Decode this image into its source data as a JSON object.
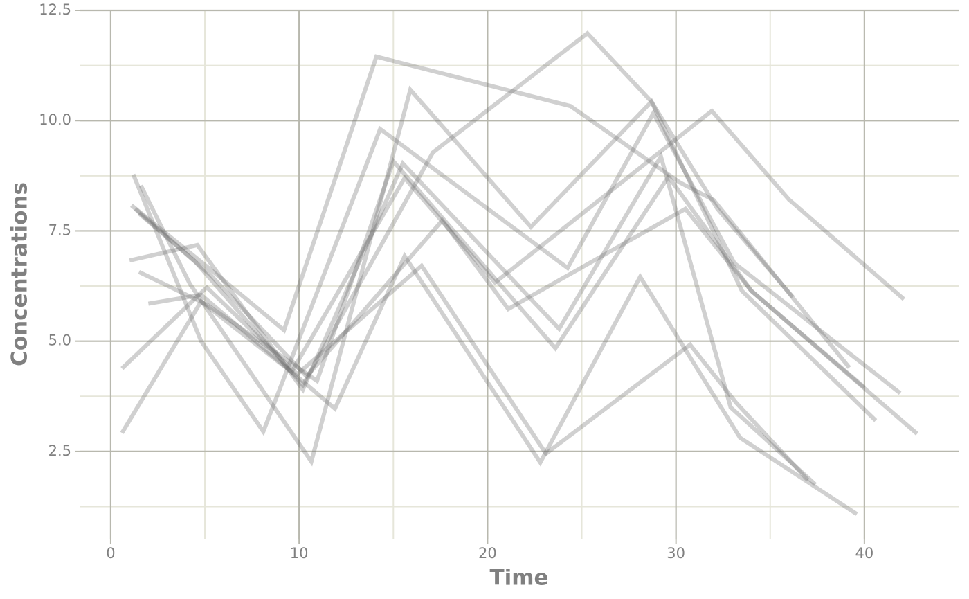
{
  "chart_data": {
    "type": "line",
    "x_label": "Time",
    "y_label": "Concentrations",
    "xlim": [
      -1.65,
      45
    ],
    "ylim": [
      0.52,
      12.5
    ],
    "xticks": [
      0,
      10,
      20,
      30,
      40
    ],
    "yticks": [
      2.5,
      {
        "value": 5,
        "label": "5.0"
      },
      7.5,
      {
        "value": 10,
        "label": "10.0"
      },
      12.5
    ],
    "xminor": [
      5,
      15,
      25,
      35
    ],
    "yminor": [
      1.25,
      3.75,
      6.25,
      8.75,
      11.25
    ],
    "grid": true,
    "color": "rgba(110,110,110,0.32)",
    "series": [
      {
        "x": [
          1.2,
          4.8,
          8.1,
          14.3,
          24.25,
          28.8,
          33.1,
          41.9
        ],
        "values": [
          8.78,
          5.0,
          2.95,
          9.81,
          6.66,
          10.17,
          6.77,
          3.82
        ]
      },
      {
        "x": [
          1.6,
          4.2,
          10.65,
          15.9,
          22.3,
          28.7,
          33.5,
          40.6
        ],
        "values": [
          8.53,
          6.3,
          2.27,
          10.7,
          7.59,
          10.43,
          6.14,
          3.2
        ]
      },
      {
        "x": [
          1.1,
          4.8,
          9.2,
          14.1,
          24.4,
          30.2,
          32.0,
          39.2
        ],
        "values": [
          8.08,
          6.8,
          5.25,
          11.45,
          10.33,
          8.6,
          8.2,
          4.4
        ]
      },
      {
        "x": [
          1.0,
          4.6,
          10.2,
          15.5,
          23.8,
          29.2,
          32.9,
          37.4
        ],
        "values": [
          6.83,
          7.18,
          3.9,
          9.03,
          5.28,
          9.19,
          3.5,
          1.75
        ]
      },
      {
        "x": [
          1.5,
          5.1,
          10.95,
          15.0,
          23.6,
          29.6,
          34.0,
          40.0
        ],
        "values": [
          6.57,
          5.83,
          4.1,
          9.08,
          4.84,
          8.73,
          6.14,
          3.95
        ]
      },
      {
        "x": [
          2.0,
          4.8,
          11.9,
          15.6,
          22.8,
          28.1,
          33.4,
          39.6
        ],
        "values": [
          5.85,
          6.05,
          3.47,
          6.93,
          2.25,
          6.46,
          2.81,
          1.08
        ]
      },
      {
        "x": [
          0.6,
          5.1,
          9.9,
          16.5,
          23.1,
          30.75,
          33.2,
          37.0
        ],
        "values": [
          4.38,
          6.22,
          4.25,
          6.71,
          2.45,
          4.92,
          3.6,
          1.85
        ]
      },
      {
        "x": [
          0.6,
          4.8,
          9.6,
          15.6,
          20.4,
          31.9,
          36.0,
          42.1
        ],
        "values": [
          2.92,
          5.9,
          4.3,
          8.7,
          6.33,
          10.22,
          8.21,
          5.95
        ]
      },
      {
        "x": [
          1.5,
          5.3,
          10.4,
          17.6,
          21.1,
          30.5,
          34.0,
          42.8
        ],
        "values": [
          7.9,
          6.5,
          4.2,
          7.74,
          5.73,
          8.0,
          6.14,
          2.9
        ]
      },
      {
        "x": [
          1.3,
          4.5,
          10.2,
          17.1,
          25.3,
          28.7,
          32.2,
          36.2
        ],
        "values": [
          8.0,
          6.8,
          4.0,
          9.28,
          11.98,
          10.43,
          8.0,
          6.0
        ]
      }
    ]
  }
}
